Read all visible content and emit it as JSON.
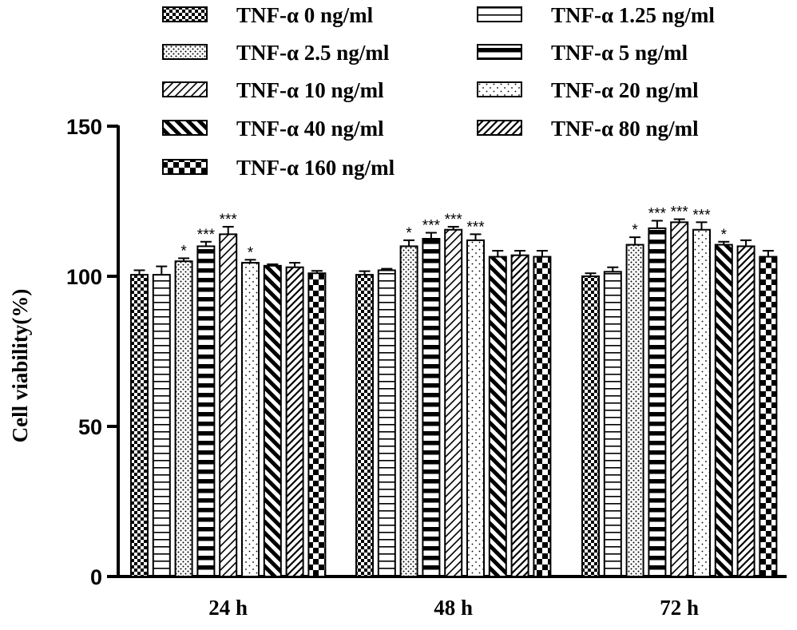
{
  "chart_data": {
    "type": "bar",
    "title": "",
    "xlabel": "",
    "ylabel": "Cell viability(%)",
    "ylim": [
      0,
      150
    ],
    "yticks": [
      "0",
      "50",
      "100",
      "150"
    ],
    "categories": [
      "24 h",
      "48 h",
      "72 h"
    ],
    "legend_position": "top",
    "series": [
      {
        "name": "TNF-α 0 ng/ml",
        "pattern": "checker-small",
        "values": [
          100.5,
          100.5,
          100.0
        ],
        "errors": [
          1.5,
          1.2,
          1.0
        ],
        "sig": [
          "",
          "",
          ""
        ]
      },
      {
        "name": "TNF-α 1.25 ng/ml",
        "pattern": "hlines-thin",
        "values": [
          100.5,
          102.0,
          101.5
        ],
        "errors": [
          2.8,
          0.5,
          1.5
        ],
        "sig": [
          "",
          "",
          ""
        ]
      },
      {
        "name": "TNF-α 2.5 ng/ml",
        "pattern": "dots-dense",
        "values": [
          105.0,
          110.0,
          110.5
        ],
        "errors": [
          1.0,
          2.0,
          2.5
        ],
        "sig": [
          "*",
          "*",
          "*"
        ]
      },
      {
        "name": "TNF-α 5 ng/ml",
        "pattern": "hlines-thick",
        "values": [
          110.0,
          112.5,
          116.0
        ],
        "errors": [
          1.5,
          2.0,
          2.5
        ],
        "sig": [
          "***",
          "***",
          "***"
        ]
      },
      {
        "name": "TNF-α 10 ng/ml",
        "pattern": "diag-thin",
        "values": [
          114.0,
          115.5,
          118.0
        ],
        "errors": [
          2.5,
          1.0,
          1.0
        ],
        "sig": [
          "***",
          "***",
          "***"
        ]
      },
      {
        "name": "TNF-α 20 ng/ml",
        "pattern": "dots-sparse",
        "values": [
          104.5,
          112.0,
          115.5
        ],
        "errors": [
          1.0,
          2.0,
          2.5
        ],
        "sig": [
          "*",
          "***",
          "***"
        ]
      },
      {
        "name": "TNF-α 40 ng/ml",
        "pattern": "diag-back-thick",
        "values": [
          103.5,
          106.5,
          110.5
        ],
        "errors": [
          0.5,
          2.0,
          1.0
        ],
        "sig": [
          "",
          "",
          "*"
        ]
      },
      {
        "name": "TNF-α 80 ng/ml",
        "pattern": "diag-medium",
        "values": [
          103.0,
          107.0,
          110.0
        ],
        "errors": [
          1.5,
          1.5,
          2.0
        ],
        "sig": [
          "",
          "",
          ""
        ]
      },
      {
        "name": "TNF-α 160 ng/ml",
        "pattern": "checker-large",
        "values": [
          101.0,
          106.5,
          106.5
        ],
        "errors": [
          0.8,
          2.0,
          2.0
        ],
        "sig": [
          "",
          "",
          ""
        ]
      }
    ]
  }
}
